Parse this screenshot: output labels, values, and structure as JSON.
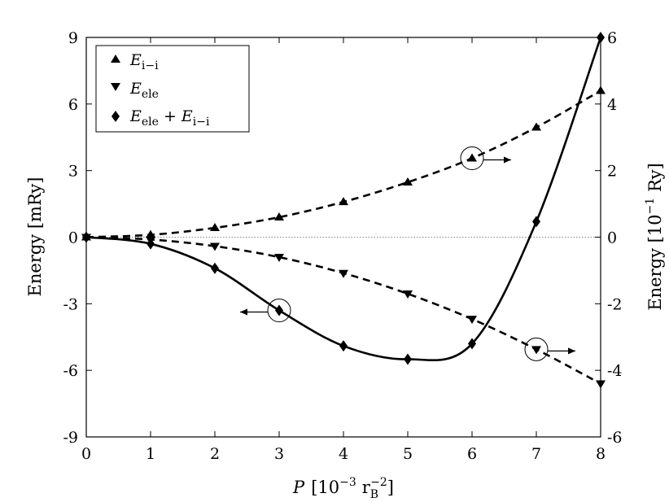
{
  "chart_data": {
    "type": "line",
    "xlabel": "P [10⁻³ r_B⁻²]",
    "xlabel_parts": {
      "main": "P",
      "open": "[10",
      "exp1": "−3",
      "unit": "r",
      "sub": "B",
      "exp2": "−2",
      "close": "]"
    },
    "ylabel_left": "Energy [mRy]",
    "ylabel_right": "Energy [10⁻¹ Ry]",
    "ylabel_right_parts": {
      "before": "Energy [10",
      "exp": "−1",
      "after": "Ry]"
    },
    "xlim": [
      0,
      8
    ],
    "ylim_left": [
      -9,
      9
    ],
    "ylim_right": [
      -6,
      6
    ],
    "x_ticks": [
      "0",
      "1",
      "2",
      "3",
      "4",
      "5",
      "6",
      "7",
      "8"
    ],
    "y_ticks_left": [
      "9",
      "6",
      "3",
      "0",
      "-3",
      "-6",
      "-9"
    ],
    "y_ticks_right": [
      "6",
      "4",
      "2",
      "0",
      "-2",
      "-4",
      "-6"
    ],
    "zero_line": true,
    "grid": false,
    "legend_position": "top-left",
    "series": [
      {
        "name": "E_i−i",
        "legend_main": "E",
        "legend_sub": "i−i",
        "axis": "right",
        "marker": "triangle-up",
        "line": "dashed",
        "x": [
          0,
          1,
          2,
          3,
          4,
          5,
          6,
          7,
          8
        ],
        "y": [
          0,
          0.07,
          0.28,
          0.6,
          1.06,
          1.65,
          2.37,
          3.3,
          4.4
        ]
      },
      {
        "name": "E_ele",
        "legend_main": "E",
        "legend_sub": "ele",
        "axis": "right",
        "marker": "triangle-down",
        "line": "dashed",
        "x": [
          0,
          1,
          2,
          3,
          4,
          5,
          6,
          7,
          8
        ],
        "y": [
          0,
          -0.07,
          -0.27,
          -0.6,
          -1.08,
          -1.7,
          -2.46,
          -3.37,
          -4.4
        ]
      },
      {
        "name": "E_ele + E_i−i",
        "legend_main1": "E",
        "legend_sub1": "ele",
        "legend_plus": "+",
        "legend_main2": "E",
        "legend_sub2": "i−i",
        "axis": "left",
        "marker": "diamond",
        "line": "solid",
        "x": [
          0,
          1,
          2,
          3,
          4,
          5,
          6,
          7,
          8
        ],
        "y": [
          0,
          -0.3,
          -1.4,
          -3.3,
          -4.9,
          -5.5,
          -4.8,
          0.7,
          9.0
        ]
      }
    ],
    "annotations": [
      {
        "series": 2,
        "at_x": 3,
        "arrow": "left",
        "text": ""
      },
      {
        "series": 0,
        "at_x": 6,
        "arrow": "right",
        "text": ""
      },
      {
        "series": 1,
        "at_x": 7,
        "arrow": "right",
        "text": ""
      }
    ]
  }
}
